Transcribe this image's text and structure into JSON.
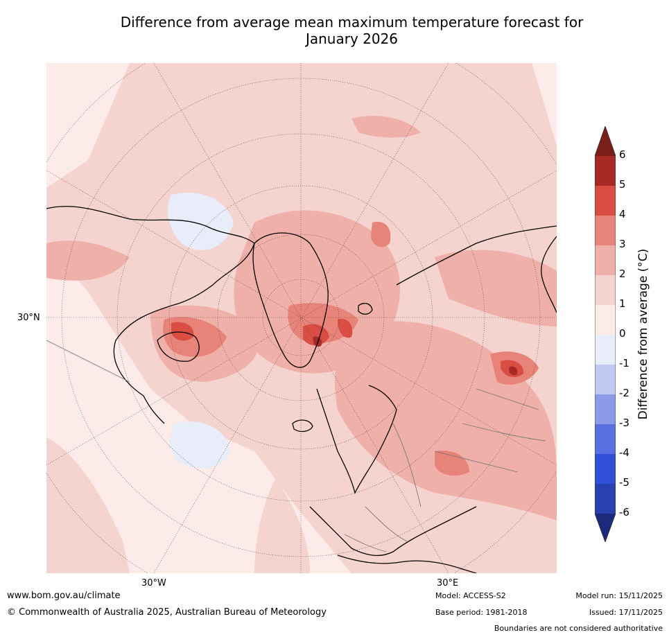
{
  "title_line1": "Difference from average mean maximum temperature forecast for",
  "title_line2": "January 2026",
  "map": {
    "lat_label": "30°N",
    "lon_labels": [
      "30°W",
      "30°E"
    ]
  },
  "colorbar": {
    "label": "Difference from average (°C)",
    "ticks": [
      "6",
      "5",
      "4",
      "3",
      "2",
      "1",
      "0",
      "-1",
      "-2",
      "-3",
      "-4",
      "-5",
      "-6"
    ],
    "colors": {
      "over": "#7a1e1a",
      "5_6": "#a82a24",
      "4_5": "#d94d42",
      "3_4": "#e78378",
      "2_3": "#eeb0a9",
      "1_2": "#f5d3cf",
      "0_1": "#fcebe8",
      "m1_0": "#e9ecf9",
      "m2_m1": "#c1c8f1",
      "m3_m2": "#8c9aea",
      "m4_m3": "#5a70e0",
      "m5_m4": "#2f4fd8",
      "m6_m5": "#2840b0",
      "under": "#1b2a7a"
    }
  },
  "footer": {
    "website": "www.bom.gov.au/climate",
    "copyright": "© Commonwealth of Australia 2025, Australian Bureau of Meteorology",
    "model": "Model: ACCESS-S2",
    "base_period": "Base period: 1981-2018",
    "model_run": "Model run: 15/11/2025",
    "issued": "Issued: 17/11/2025",
    "boundaries": "Boundaries are not considered authoritative"
  }
}
